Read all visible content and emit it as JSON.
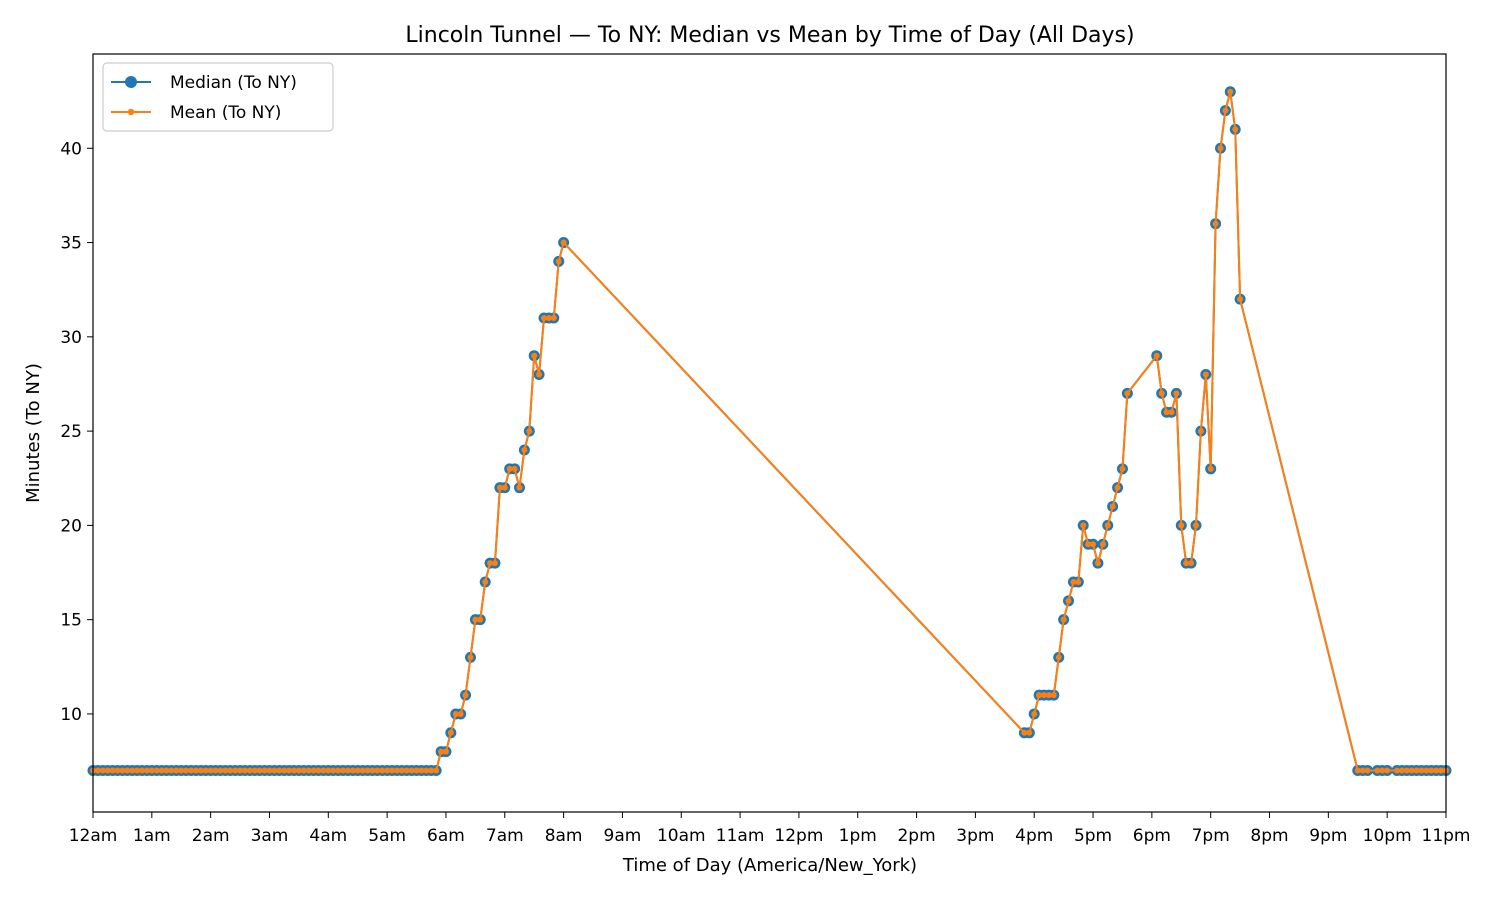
{
  "chart_data": {
    "type": "line",
    "title": "Lincoln Tunnel — To NY: Median vs Mean by Time of Day (All Days)",
    "xlabel": "Time of Day (America/New_York)",
    "ylabel": "Minutes (To NY)",
    "x_unit": "hours since midnight",
    "xlim": [
      0,
      23
    ],
    "ylim": [
      4.8,
      45.0
    ],
    "x_ticks": [
      {
        "value": 0,
        "label": "12am"
      },
      {
        "value": 1,
        "label": "1am"
      },
      {
        "value": 2,
        "label": "2am"
      },
      {
        "value": 3,
        "label": "3am"
      },
      {
        "value": 4,
        "label": "4am"
      },
      {
        "value": 5,
        "label": "5am"
      },
      {
        "value": 6,
        "label": "6am"
      },
      {
        "value": 7,
        "label": "7am"
      },
      {
        "value": 8,
        "label": "8am"
      },
      {
        "value": 9,
        "label": "9am"
      },
      {
        "value": 10,
        "label": "10am"
      },
      {
        "value": 11,
        "label": "11am"
      },
      {
        "value": 12,
        "label": "12pm"
      },
      {
        "value": 13,
        "label": "1pm"
      },
      {
        "value": 14,
        "label": "2pm"
      },
      {
        "value": 15,
        "label": "3pm"
      },
      {
        "value": 16,
        "label": "4pm"
      },
      {
        "value": 17,
        "label": "5pm"
      },
      {
        "value": 18,
        "label": "6pm"
      },
      {
        "value": 19,
        "label": "7pm"
      },
      {
        "value": 20,
        "label": "8pm"
      },
      {
        "value": 21,
        "label": "9pm"
      },
      {
        "value": 22,
        "label": "10pm"
      },
      {
        "value": 23,
        "label": "11pm"
      }
    ],
    "y_ticks": [
      {
        "value": 10,
        "label": "10"
      },
      {
        "value": 15,
        "label": "15"
      },
      {
        "value": 20,
        "label": "20"
      },
      {
        "value": 25,
        "label": "25"
      },
      {
        "value": 30,
        "label": "30"
      },
      {
        "value": 35,
        "label": "35"
      },
      {
        "value": 40,
        "label": "40"
      }
    ],
    "grid": false,
    "legend_position": "top-left",
    "series": [
      {
        "name": "Median (To NY)",
        "color": "#1f77b4",
        "marker": "circle-large"
      },
      {
        "name": "Mean (To NY)",
        "color": "#ff7f0e",
        "marker": "circle-small"
      }
    ],
    "points": [
      [
        0.0,
        7
      ],
      [
        0.083,
        7
      ],
      [
        0.167,
        7
      ],
      [
        0.25,
        7
      ],
      [
        0.333,
        7
      ],
      [
        0.417,
        7
      ],
      [
        0.5,
        7
      ],
      [
        0.583,
        7
      ],
      [
        0.667,
        7
      ],
      [
        0.75,
        7
      ],
      [
        0.833,
        7
      ],
      [
        0.917,
        7
      ],
      [
        1.0,
        7
      ],
      [
        1.083,
        7
      ],
      [
        1.167,
        7
      ],
      [
        1.25,
        7
      ],
      [
        1.333,
        7
      ],
      [
        1.417,
        7
      ],
      [
        1.5,
        7
      ],
      [
        1.583,
        7
      ],
      [
        1.667,
        7
      ],
      [
        1.75,
        7
      ],
      [
        1.833,
        7
      ],
      [
        1.917,
        7
      ],
      [
        2.0,
        7
      ],
      [
        2.083,
        7
      ],
      [
        2.167,
        7
      ],
      [
        2.25,
        7
      ],
      [
        2.333,
        7
      ],
      [
        2.417,
        7
      ],
      [
        2.5,
        7
      ],
      [
        2.583,
        7
      ],
      [
        2.667,
        7
      ],
      [
        2.75,
        7
      ],
      [
        2.833,
        7
      ],
      [
        2.917,
        7
      ],
      [
        3.0,
        7
      ],
      [
        3.083,
        7
      ],
      [
        3.167,
        7
      ],
      [
        3.25,
        7
      ],
      [
        3.333,
        7
      ],
      [
        3.417,
        7
      ],
      [
        3.5,
        7
      ],
      [
        3.583,
        7
      ],
      [
        3.667,
        7
      ],
      [
        3.75,
        7
      ],
      [
        3.833,
        7
      ],
      [
        3.917,
        7
      ],
      [
        4.0,
        7
      ],
      [
        4.083,
        7
      ],
      [
        4.167,
        7
      ],
      [
        4.25,
        7
      ],
      [
        4.333,
        7
      ],
      [
        4.417,
        7
      ],
      [
        4.5,
        7
      ],
      [
        4.583,
        7
      ],
      [
        4.667,
        7
      ],
      [
        4.75,
        7
      ],
      [
        4.833,
        7
      ],
      [
        4.917,
        7
      ],
      [
        5.0,
        7
      ],
      [
        5.083,
        7
      ],
      [
        5.167,
        7
      ],
      [
        5.25,
        7
      ],
      [
        5.333,
        7
      ],
      [
        5.417,
        7
      ],
      [
        5.5,
        7
      ],
      [
        5.583,
        7
      ],
      [
        5.667,
        7
      ],
      [
        5.75,
        7
      ],
      [
        5.833,
        7
      ],
      [
        5.917,
        8
      ],
      [
        6.0,
        8
      ],
      [
        6.083,
        9
      ],
      [
        6.167,
        10
      ],
      [
        6.25,
        10
      ],
      [
        6.333,
        11
      ],
      [
        6.417,
        13
      ],
      [
        6.5,
        15
      ],
      [
        6.583,
        15
      ],
      [
        6.667,
        17
      ],
      [
        6.75,
        18
      ],
      [
        6.833,
        18
      ],
      [
        6.917,
        22
      ],
      [
        7.0,
        22
      ],
      [
        7.083,
        23
      ],
      [
        7.167,
        23
      ],
      [
        7.25,
        22
      ],
      [
        7.333,
        24
      ],
      [
        7.417,
        25
      ],
      [
        7.5,
        29
      ],
      [
        7.583,
        28
      ],
      [
        7.667,
        31
      ],
      [
        7.75,
        31
      ],
      [
        7.833,
        31
      ],
      [
        7.917,
        34
      ],
      [
        8.0,
        35
      ],
      [
        15.833,
        9
      ],
      [
        15.917,
        9
      ],
      [
        16.0,
        10
      ],
      [
        16.083,
        11
      ],
      [
        16.167,
        11
      ],
      [
        16.25,
        11
      ],
      [
        16.333,
        11
      ],
      [
        16.417,
        13
      ],
      [
        16.5,
        15
      ],
      [
        16.583,
        16
      ],
      [
        16.667,
        17
      ],
      [
        16.75,
        17
      ],
      [
        16.833,
        20
      ],
      [
        16.917,
        19
      ],
      [
        17.0,
        19
      ],
      [
        17.083,
        18
      ],
      [
        17.167,
        19
      ],
      [
        17.25,
        20
      ],
      [
        17.333,
        21
      ],
      [
        17.417,
        22
      ],
      [
        17.5,
        23
      ],
      [
        17.583,
        27
      ],
      [
        18.083,
        29
      ],
      [
        18.167,
        27
      ],
      [
        18.25,
        26
      ],
      [
        18.333,
        26
      ],
      [
        18.417,
        27
      ],
      [
        18.5,
        20
      ],
      [
        18.583,
        18
      ],
      [
        18.667,
        18
      ],
      [
        18.75,
        20
      ],
      [
        18.833,
        25
      ],
      [
        18.917,
        28
      ],
      [
        19.0,
        23
      ],
      [
        19.083,
        36
      ],
      [
        19.167,
        40
      ],
      [
        19.25,
        42
      ],
      [
        19.333,
        43
      ],
      [
        19.417,
        41
      ],
      [
        19.5,
        32
      ],
      [
        21.5,
        7
      ],
      [
        21.583,
        7
      ],
      [
        21.667,
        7
      ],
      [
        21.833,
        7
      ],
      [
        21.917,
        7
      ],
      [
        22.0,
        7
      ],
      [
        22.167,
        7
      ],
      [
        22.25,
        7
      ],
      [
        22.333,
        7
      ],
      [
        22.417,
        7
      ],
      [
        22.5,
        7
      ],
      [
        22.583,
        7
      ],
      [
        22.667,
        7
      ],
      [
        22.75,
        7
      ],
      [
        22.833,
        7
      ],
      [
        22.917,
        7
      ],
      [
        23.0,
        7
      ]
    ]
  }
}
